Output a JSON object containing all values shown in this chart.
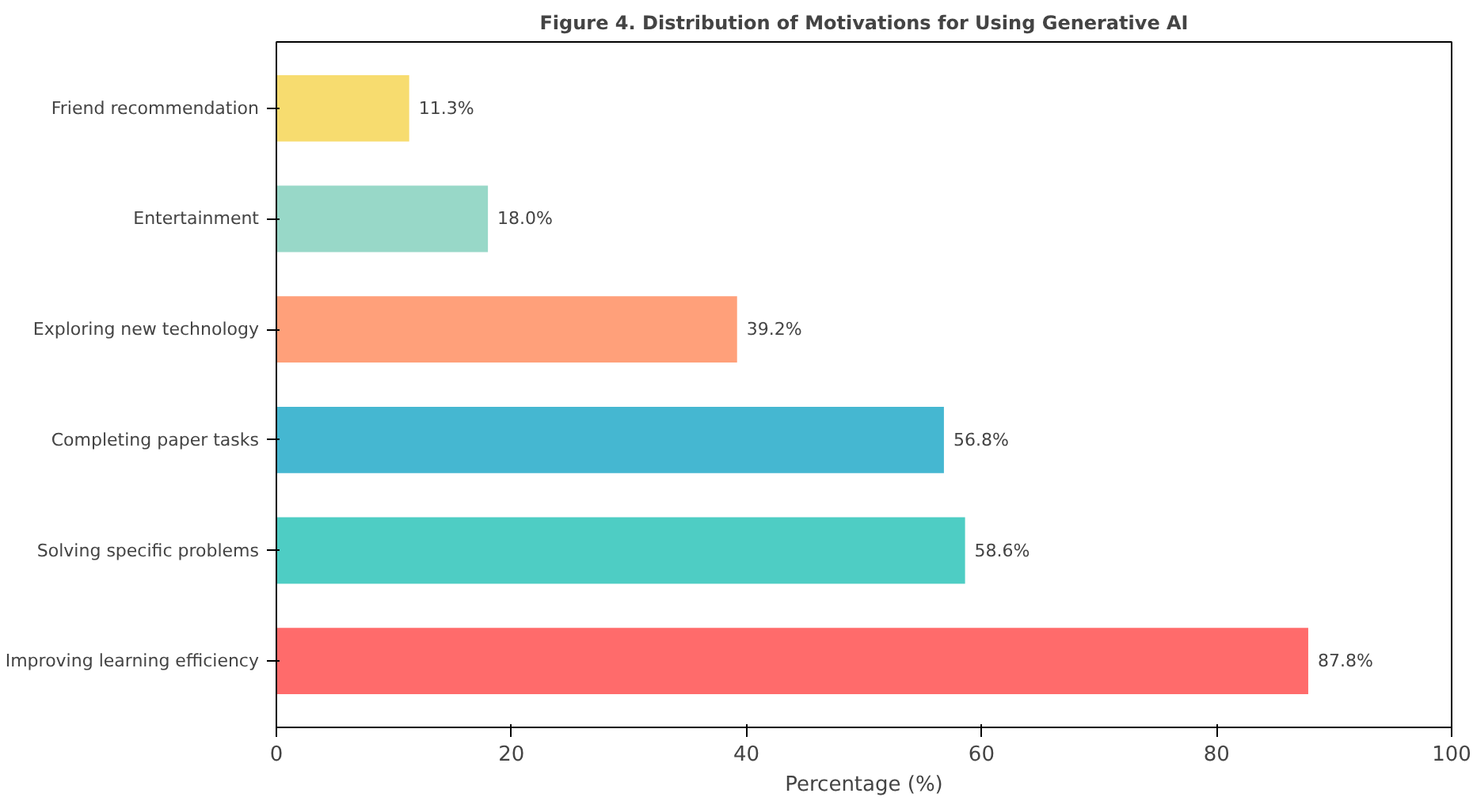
{
  "chart_data": {
    "type": "bar",
    "orientation": "horizontal",
    "title": "Figure 4. Distribution of Motivations for Using Generative AI",
    "xlabel": "Percentage (%)",
    "categories": [
      "Friend recommendation",
      "Entertainment",
      "Exploring new technology",
      "Completing paper tasks",
      "Solving specific problems",
      "Improving learning efficiency"
    ],
    "values": [
      11.3,
      18.0,
      39.2,
      56.8,
      58.6,
      87.8
    ],
    "colors": [
      "#f7dc6f",
      "#98d8c8",
      "#ffa07a",
      "#45b7d1",
      "#4ecdc4",
      "#ff6b6b"
    ],
    "value_labels": [
      "11.3%",
      "18.0%",
      "39.2%",
      "56.8%",
      "58.6%",
      "87.8%"
    ],
    "xlim": [
      0,
      100
    ],
    "xticks": [
      0,
      20,
      40,
      60,
      80,
      100
    ],
    "grid": false
  }
}
